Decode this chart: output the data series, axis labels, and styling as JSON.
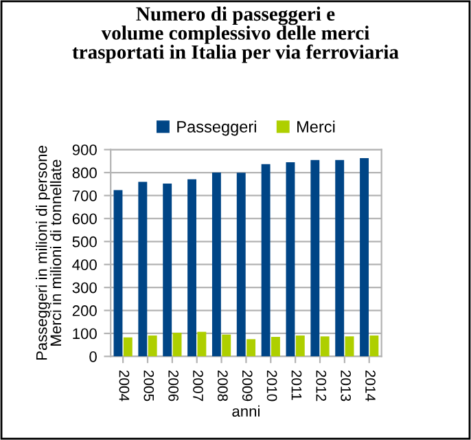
{
  "chart_data": {
    "type": "bar",
    "title": "Numero di passeggeri e\nvolume complessivo delle merci\ntrasportati in Italia per via ferroviaria",
    "xlabel": "anni",
    "ylabel": "Passeggeri in milioni di persone\nMerci in milioni di tonnellate",
    "categories": [
      "2004",
      "2005",
      "2006",
      "2007",
      "2008",
      "2009",
      "2010",
      "2011",
      "2012",
      "2013",
      "2014"
    ],
    "series": [
      {
        "name": "Passeggeri",
        "color": "#004586",
        "values": [
          724,
          760,
          752,
          771,
          800,
          799,
          837,
          845,
          855,
          855,
          863
        ]
      },
      {
        "name": "Merci",
        "color": "#aecf00",
        "values": [
          83,
          91,
          103,
          107,
          95,
          75,
          85,
          91,
          87,
          87,
          91
        ]
      }
    ],
    "ylim": [
      0,
      900
    ],
    "yticks": [
      0,
      100,
      200,
      300,
      400,
      500,
      600,
      700,
      800,
      900
    ],
    "grid": "y",
    "legend": "top"
  }
}
